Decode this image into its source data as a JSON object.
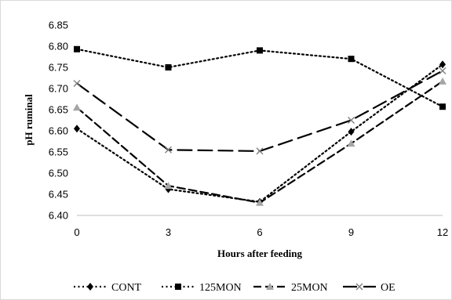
{
  "chart_data": {
    "type": "line",
    "title": "",
    "xlabel": "Hours after feeding",
    "ylabel": "pH ruminal",
    "x": [
      0,
      3,
      6,
      9,
      12
    ],
    "x_tick_labels": [
      "0",
      "3",
      "6",
      "9",
      "12"
    ],
    "ylim": [
      6.4,
      6.85
    ],
    "y_tick_labels": [
      "6.40",
      "6.45",
      "6.50",
      "6.55",
      "6.60",
      "6.65",
      "6.70",
      "6.75",
      "6.80",
      "6.85"
    ],
    "grid": false,
    "legend_position": "bottom",
    "series": [
      {
        "name": "CONT",
        "values": [
          6.605,
          6.462,
          6.432,
          6.598,
          6.757
        ],
        "color": "#000000",
        "marker": "diamond",
        "dash": "dot"
      },
      {
        "name": "125MON",
        "values": [
          6.793,
          6.75,
          6.79,
          6.77,
          6.657
        ],
        "color": "#000000",
        "marker": "square",
        "dash": "dot"
      },
      {
        "name": "25MON",
        "values": [
          6.655,
          6.47,
          6.43,
          6.57,
          6.717
        ],
        "color": "#000000",
        "marker": "triangle",
        "marker_color": "#a6a6a6",
        "dash": "dash"
      },
      {
        "name": "OE",
        "values": [
          6.712,
          6.555,
          6.552,
          6.625,
          6.742
        ],
        "color": "#000000",
        "marker": "x",
        "marker_color": "#7f7f7f",
        "dash": "longdash"
      }
    ]
  }
}
